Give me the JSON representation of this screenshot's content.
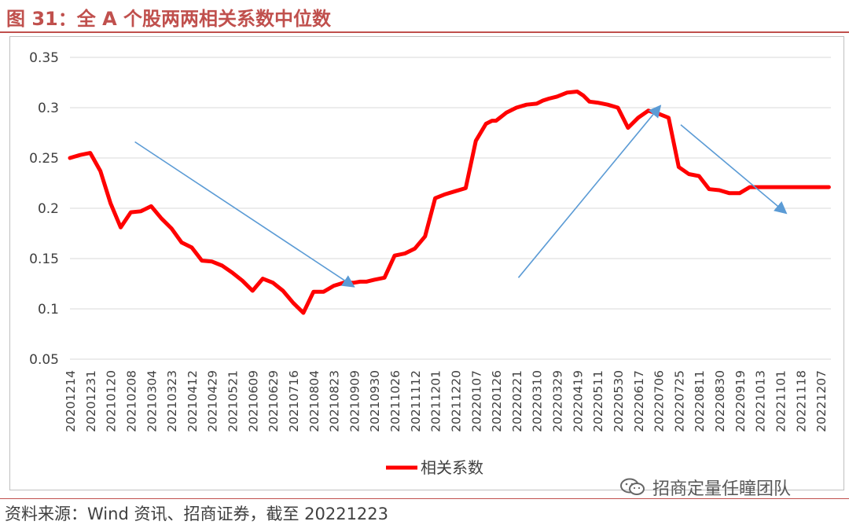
{
  "figure": {
    "title": "图 31：全 A 个股两两相关系数中位数",
    "source": "资料来源：Wind 资讯、招商证券，截至 20221223",
    "watermark": "招商定量任瞳团队",
    "watermark_icon": "wechat-icon"
  },
  "colors": {
    "accent": "#c0504d",
    "series": "#ff0000",
    "arrow": "#5b9bd5",
    "grid": "#d9d9d9"
  },
  "chart_data": {
    "type": "line",
    "title": "",
    "xlabel": "",
    "ylabel": "",
    "ylim": [
      0.05,
      0.35
    ],
    "yticks": [
      "0.05",
      "0.1",
      "0.15",
      "0.2",
      "0.25",
      "0.3",
      "0.35"
    ],
    "grid": true,
    "legend": "bottom-center",
    "x_tick_labels": [
      "20201214",
      "20201231",
      "20210120",
      "20210208",
      "20210304",
      "20210323",
      "20210412",
      "20210429",
      "20210521",
      "20210609",
      "20210629",
      "20210716",
      "20210804",
      "20210823",
      "20210909",
      "20210930",
      "20211026",
      "20211112",
      "20211201",
      "20211220",
      "20220107",
      "20220126",
      "20220221",
      "20220310",
      "20220329",
      "20220419",
      "20220511",
      "20220530",
      "20220617",
      "20220706",
      "20220725",
      "20220811",
      "20220830",
      "20220919",
      "20221013",
      "20221101",
      "20221118",
      "20221207"
    ],
    "series": [
      {
        "name": "相关系数",
        "x_index": [
          0,
          0.5,
          1,
          1.5,
          2,
          2.5,
          3,
          3.5,
          4,
          4.5,
          5,
          5.5,
          6,
          6.5,
          7,
          7.5,
          8,
          8.5,
          9,
          9.5,
          10,
          10.5,
          11,
          11.5,
          12,
          12.5,
          13,
          13.5,
          14,
          14.3,
          14.6,
          15,
          15.5,
          16,
          16.5,
          17,
          17.5,
          18,
          18.5,
          19,
          19.5,
          20,
          20.5,
          20.8,
          21,
          21.5,
          22,
          22.5,
          23,
          23.3,
          23.6,
          24,
          24.5,
          25,
          25.3,
          25.6,
          26,
          26.5,
          27,
          27.5,
          28,
          28.5,
          29,
          29.5,
          30,
          30.5,
          31,
          31.5,
          32,
          32.5,
          33,
          33.5,
          34,
          34.5,
          35,
          35.3,
          35.6,
          36,
          36.3,
          36.6,
          37,
          37.4
        ],
        "values": [
          0.25,
          0.253,
          0.255,
          0.237,
          0.205,
          0.181,
          0.196,
          0.197,
          0.202,
          0.19,
          0.18,
          0.166,
          0.161,
          0.148,
          0.147,
          0.143,
          0.136,
          0.128,
          0.118,
          0.13,
          0.126,
          0.118,
          0.106,
          0.096,
          0.117,
          0.117,
          0.123,
          0.126,
          0.126,
          0.127,
          0.127,
          0.129,
          0.131,
          0.153,
          0.155,
          0.16,
          0.172,
          0.21,
          0.214,
          0.217,
          0.22,
          0.267,
          0.284,
          0.287,
          0.287,
          0.295,
          0.3,
          0.303,
          0.304,
          0.307,
          0.309,
          0.311,
          0.315,
          0.316,
          0.312,
          0.306,
          0.305,
          0.303,
          0.3,
          0.28,
          0.29,
          0.297,
          0.294,
          0.29,
          0.241,
          0.234,
          0.232,
          0.219,
          0.218,
          0.215,
          0.215,
          0.221,
          0.221,
          0.221,
          0.221,
          0.221,
          0.221,
          0.221,
          0.221,
          0.221,
          0.221,
          0.221
        ]
      }
    ],
    "annotations": [
      {
        "type": "arrow",
        "from": [
          3.2,
          0.266
        ],
        "to": [
          14,
          0.122
        ]
      },
      {
        "type": "arrow",
        "from": [
          22.1,
          0.131
        ],
        "to": [
          29.1,
          0.302
        ]
      },
      {
        "type": "arrow",
        "from": [
          30.1,
          0.283
        ],
        "to": [
          35.3,
          0.195
        ]
      }
    ]
  }
}
